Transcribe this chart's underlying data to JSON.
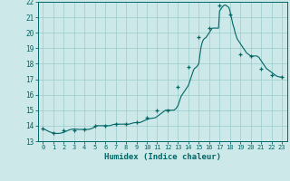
{
  "xlabel": "Humidex (Indice chaleur)",
  "bg_color": "#cce8e8",
  "grid_color": "#99cccc",
  "line_color": "#006666",
  "xlim": [
    -0.5,
    23.5
  ],
  "ylim": [
    13,
    22
  ],
  "yticks": [
    13,
    14,
    15,
    16,
    17,
    18,
    19,
    20,
    21,
    22
  ],
  "xticks": [
    0,
    1,
    2,
    3,
    4,
    5,
    6,
    7,
    8,
    9,
    10,
    11,
    12,
    13,
    14,
    15,
    16,
    17,
    18,
    19,
    20,
    21,
    22,
    23
  ],
  "x": [
    0,
    0.1,
    0.2,
    0.3,
    0.4,
    0.5,
    0.6,
    0.7,
    0.8,
    0.9,
    1.0,
    1.1,
    1.2,
    1.3,
    1.4,
    1.5,
    1.6,
    1.7,
    1.8,
    1.9,
    2.0,
    2.1,
    2.2,
    2.3,
    2.4,
    2.5,
    2.6,
    2.7,
    2.8,
    2.9,
    3.0,
    3.1,
    3.2,
    3.3,
    3.4,
    3.5,
    3.6,
    3.7,
    3.8,
    3.9,
    4.0,
    4.1,
    4.2,
    4.3,
    4.4,
    4.5,
    4.6,
    4.7,
    4.8,
    4.9,
    5.0,
    5.1,
    5.2,
    5.3,
    5.4,
    5.5,
    5.6,
    5.7,
    5.8,
    5.9,
    6.0,
    6.1,
    6.2,
    6.3,
    6.4,
    6.5,
    6.6,
    6.7,
    6.8,
    6.9,
    7.0,
    7.1,
    7.2,
    7.3,
    7.4,
    7.5,
    7.6,
    7.7,
    7.8,
    7.9,
    8.0,
    8.1,
    8.2,
    8.3,
    8.4,
    8.5,
    8.6,
    8.7,
    8.8,
    8.9,
    9.0,
    9.1,
    9.2,
    9.3,
    9.4,
    9.5,
    9.6,
    9.7,
    9.8,
    9.9,
    10.0,
    10.1,
    10.2,
    10.3,
    10.4,
    10.5,
    10.6,
    10.7,
    10.8,
    10.9,
    11.0,
    11.1,
    11.2,
    11.3,
    11.4,
    11.5,
    11.6,
    11.7,
    11.8,
    11.9,
    12.0,
    12.1,
    12.2,
    12.3,
    12.4,
    12.5,
    12.6,
    12.7,
    12.8,
    12.9,
    13.0,
    13.1,
    13.2,
    13.3,
    13.4,
    13.5,
    13.6,
    13.7,
    13.8,
    13.9,
    14.0,
    14.1,
    14.2,
    14.3,
    14.4,
    14.5,
    14.6,
    14.7,
    14.8,
    14.9,
    15.0,
    15.1,
    15.2,
    15.3,
    15.4,
    15.5,
    15.6,
    15.7,
    15.8,
    15.9,
    16.0,
    16.1,
    16.2,
    16.3,
    16.4,
    16.5,
    16.6,
    16.7,
    16.8,
    16.9,
    17.0,
    17.1,
    17.2,
    17.3,
    17.4,
    17.5,
    17.6,
    17.7,
    17.8,
    17.9,
    18.0,
    18.1,
    18.2,
    18.3,
    18.4,
    18.5,
    18.6,
    18.7,
    18.8,
    18.9,
    19.0,
    19.1,
    19.2,
    19.3,
    19.4,
    19.5,
    19.6,
    19.7,
    19.8,
    19.9,
    20.0,
    20.1,
    20.2,
    20.3,
    20.4,
    20.5,
    20.6,
    20.7,
    20.8,
    20.9,
    21.0,
    21.1,
    21.2,
    21.3,
    21.4,
    21.5,
    21.6,
    21.7,
    21.8,
    21.9,
    22.0,
    22.1,
    22.2,
    22.3,
    22.4,
    22.5,
    22.6,
    22.7,
    22.8,
    22.9,
    23.0
  ],
  "y": [
    13.8,
    13.78,
    13.75,
    13.72,
    13.68,
    13.65,
    13.62,
    13.59,
    13.57,
    13.55,
    13.53,
    13.52,
    13.51,
    13.5,
    13.5,
    13.5,
    13.51,
    13.52,
    13.53,
    13.55,
    13.57,
    13.6,
    13.63,
    13.66,
    13.69,
    13.72,
    13.74,
    13.76,
    13.77,
    13.78,
    13.78,
    13.78,
    13.77,
    13.77,
    13.76,
    13.76,
    13.76,
    13.76,
    13.76,
    13.76,
    13.76,
    13.76,
    13.76,
    13.76,
    13.76,
    13.78,
    13.8,
    13.82,
    13.85,
    13.88,
    13.92,
    13.96,
    14.0,
    14.0,
    14.0,
    14.0,
    14.0,
    14.0,
    14.0,
    14.0,
    14.0,
    14.0,
    14.0,
    14.0,
    14.0,
    14.02,
    14.04,
    14.06,
    14.08,
    14.09,
    14.1,
    14.1,
    14.1,
    14.1,
    14.1,
    14.1,
    14.1,
    14.1,
    14.1,
    14.1,
    14.1,
    14.1,
    14.1,
    14.1,
    14.12,
    14.14,
    14.16,
    14.18,
    14.19,
    14.2,
    14.2,
    14.2,
    14.2,
    14.2,
    14.22,
    14.25,
    14.28,
    14.31,
    14.34,
    14.37,
    14.4,
    14.42,
    14.44,
    14.46,
    14.47,
    14.48,
    14.49,
    14.5,
    14.51,
    14.55,
    14.6,
    14.65,
    14.7,
    14.75,
    14.8,
    14.85,
    14.9,
    14.95,
    15.0,
    15.0,
    15.0,
    15.0,
    15.0,
    15.0,
    15.0,
    15.0,
    15.0,
    15.05,
    15.1,
    15.2,
    15.3,
    15.5,
    15.7,
    15.9,
    16.0,
    16.1,
    16.2,
    16.3,
    16.4,
    16.5,
    16.6,
    16.8,
    17.0,
    17.2,
    17.4,
    17.6,
    17.7,
    17.75,
    17.8,
    17.9,
    18.0,
    18.5,
    19.0,
    19.3,
    19.5,
    19.6,
    19.65,
    19.7,
    19.8,
    19.9,
    20.0,
    20.1,
    20.2,
    20.3,
    20.3,
    20.3,
    20.3,
    20.3,
    20.3,
    20.3,
    21.4,
    21.5,
    21.6,
    21.7,
    21.75,
    21.8,
    21.78,
    21.73,
    21.68,
    21.63,
    21.4,
    21.1,
    20.8,
    20.5,
    20.3,
    20.0,
    19.8,
    19.6,
    19.5,
    19.4,
    19.3,
    19.2,
    19.1,
    19.0,
    18.9,
    18.8,
    18.7,
    18.65,
    18.6,
    18.55,
    18.5,
    18.5,
    18.5,
    18.5,
    18.5,
    18.5,
    18.5,
    18.45,
    18.4,
    18.3,
    18.2,
    18.1,
    18.0,
    17.9,
    17.8,
    17.7,
    17.65,
    17.6,
    17.55,
    17.5,
    17.45,
    17.4,
    17.35,
    17.3,
    17.25,
    17.2,
    17.18,
    17.16,
    17.15,
    17.14,
    17.13
  ],
  "marker_x": [
    0,
    1,
    2,
    3,
    4,
    5,
    6,
    7,
    8,
    9,
    10,
    11,
    12,
    13,
    14,
    15,
    16,
    17,
    18,
    19,
    20,
    21,
    22,
    23
  ],
  "marker_y": [
    13.8,
    13.5,
    13.7,
    13.7,
    13.76,
    14.0,
    14.0,
    14.1,
    14.1,
    14.2,
    14.5,
    15.0,
    15.0,
    16.5,
    17.8,
    19.7,
    20.3,
    21.75,
    21.2,
    18.6,
    18.5,
    17.65,
    17.25,
    17.13
  ]
}
